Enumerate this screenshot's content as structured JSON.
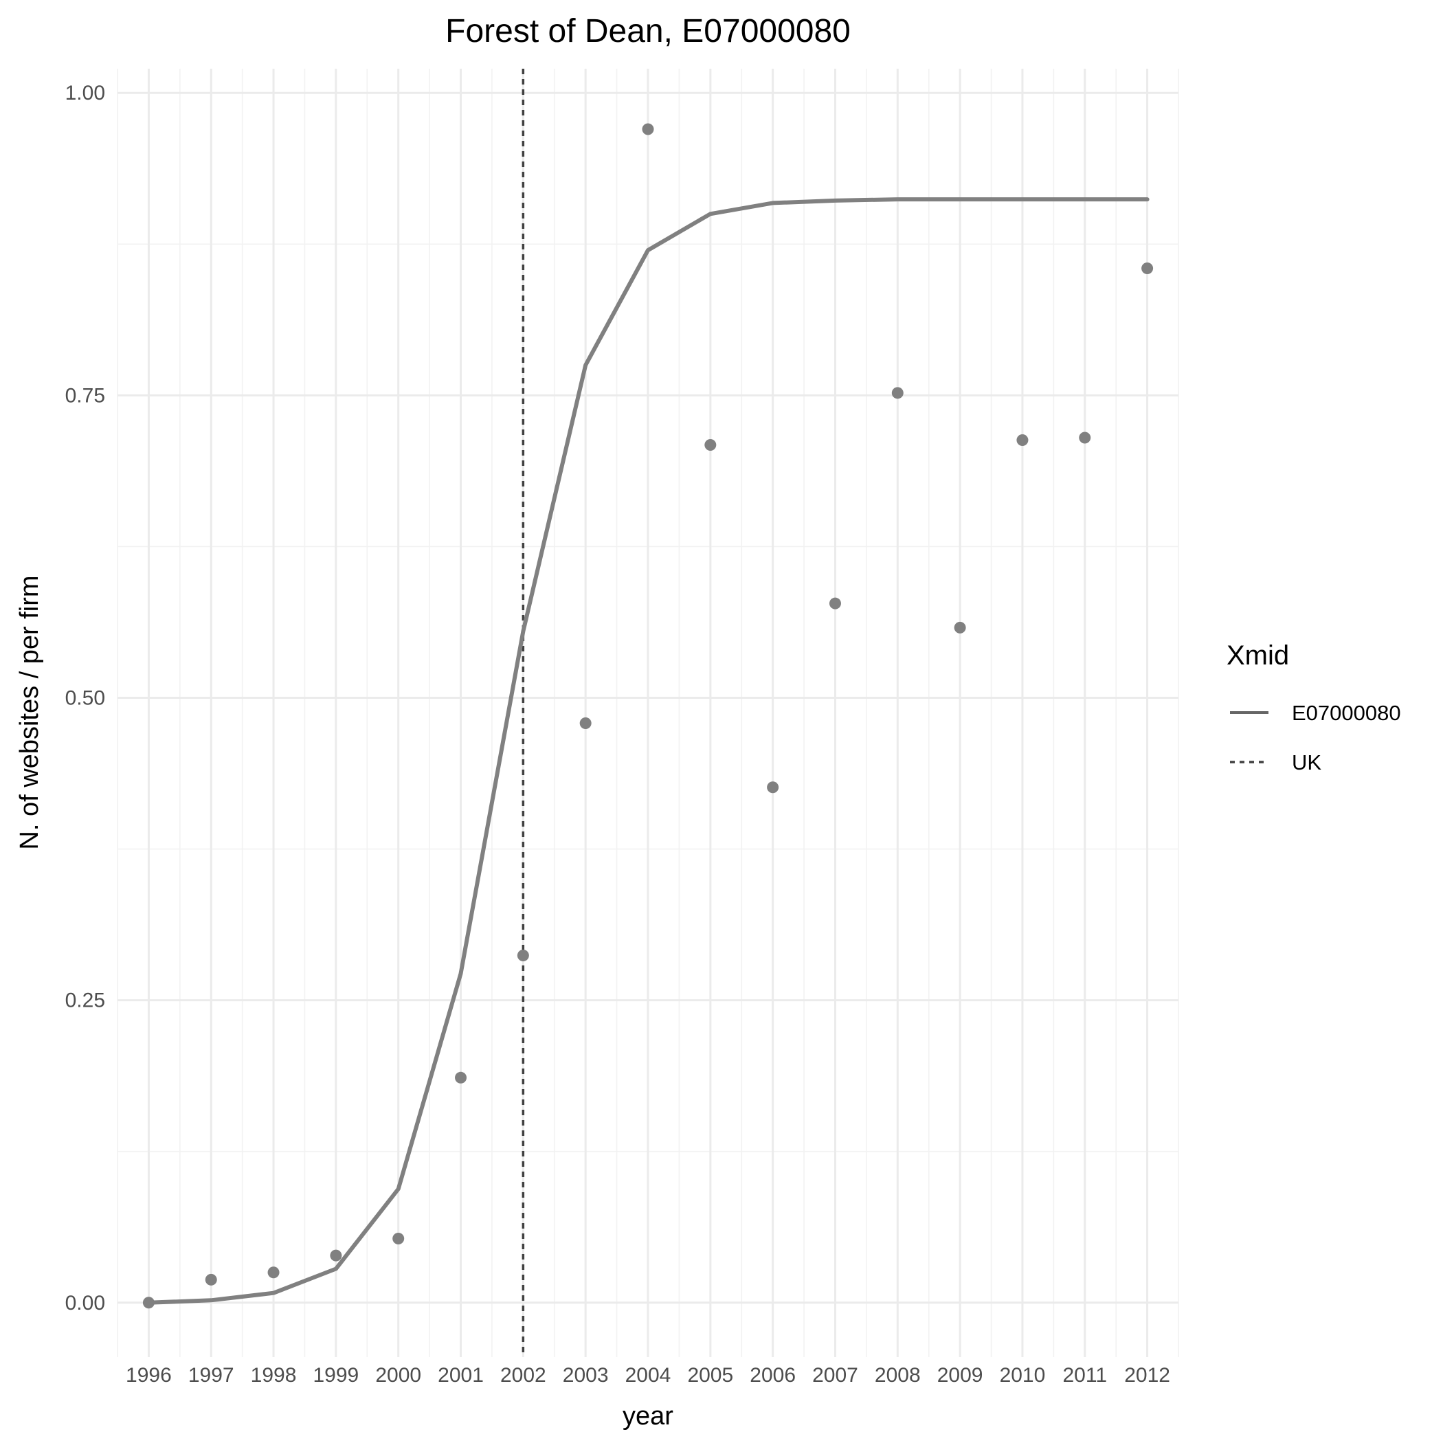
{
  "chart_data": {
    "type": "line",
    "title": "Forest of Dean, E07000080",
    "xlabel": "year",
    "ylabel": "N. of websites / per firm",
    "x": [
      1996,
      1997,
      1998,
      1999,
      2000,
      2001,
      2002,
      2003,
      2004,
      2005,
      2006,
      2007,
      2008,
      2009,
      2010,
      2011,
      2012
    ],
    "xlim": [
      1995.5,
      2012.5
    ],
    "ylim": [
      -0.045,
      1.02
    ],
    "y_ticks": [
      0.0,
      0.25,
      0.5,
      0.75,
      1.0
    ],
    "y_tick_labels": [
      "0.00",
      "0.25",
      "0.50",
      "0.75",
      "1.00"
    ],
    "grid": true,
    "series": [
      {
        "name": "E07000080",
        "kind": "line",
        "color": "#808080",
        "values": [
          0.0,
          0.002,
          0.008,
          0.028,
          0.094,
          0.272,
          0.555,
          0.775,
          0.87,
          0.9,
          0.909,
          0.911,
          0.912,
          0.912,
          0.912,
          0.912,
          0.912
        ]
      },
      {
        "kind": "points",
        "color": "#808080",
        "values": [
          0.0,
          0.019,
          0.025,
          0.039,
          0.053,
          0.186,
          0.287,
          0.479,
          0.97,
          0.709,
          0.426,
          0.578,
          0.752,
          0.558,
          0.713,
          0.715,
          0.855
        ]
      }
    ],
    "vline": {
      "name": "UK",
      "x": 2002,
      "style": "dashed",
      "color": "#404040"
    },
    "legend": {
      "title": "Xmid",
      "position": "right",
      "entries": [
        {
          "label": "E07000080",
          "style": "solid",
          "color": "#666666"
        },
        {
          "label": "UK",
          "style": "dashed",
          "color": "#404040"
        }
      ]
    }
  }
}
